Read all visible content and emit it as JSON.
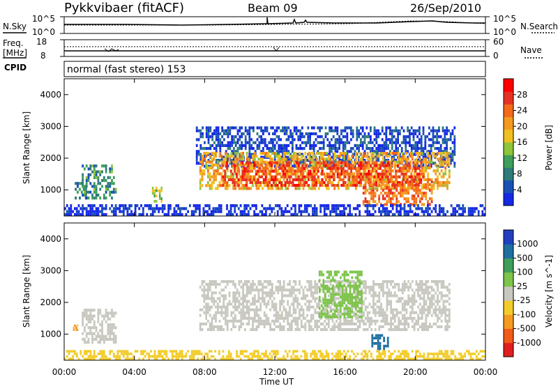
{
  "header": {
    "station": "Pykkvibaer (fitACF)",
    "beam": "Beam 09",
    "date": "26/Sep/2010"
  },
  "panel_noise": {
    "left_label": "N.Sky",
    "left_ticks": [
      "10^5",
      "10^0"
    ],
    "right_label": "N.Search",
    "right_ticks": [
      "10^5",
      "10^0"
    ]
  },
  "panel_freq": {
    "left_label_line1": "Freq.",
    "left_label_line2": "[MHz]",
    "left_ticks": [
      "18",
      "8"
    ],
    "right_label": "Nave",
    "right_ticks": [
      "60",
      "0"
    ]
  },
  "panel_cpid": {
    "label": "CPID",
    "text": "normal (fast stereo) 153"
  },
  "chart_data": [
    {
      "type": "heatmap",
      "title": "",
      "xlabel": "",
      "ylabel": "Slant Range [km]",
      "xlim": [
        0,
        24
      ],
      "ylim": [
        180,
        4500
      ],
      "yticks": [
        1000,
        2000,
        3000,
        4000
      ],
      "colorbar": {
        "label": "Power [dB]",
        "ticks": [
          "4",
          "8",
          "12",
          "16",
          "20",
          "24",
          "28"
        ],
        "colors": [
          "#1428e6",
          "#1a50b4",
          "#2f7a7a",
          "#3e9e5a",
          "#8ec43a",
          "#f0c020",
          "#f59a1e",
          "#f56a1a",
          "#e63222",
          "#ff0000"
        ]
      },
      "regions": [
        {
          "t0": 0.6,
          "t1": 1.3,
          "r0": 700,
          "r1": 1250,
          "level": 10
        },
        {
          "t0": 1.0,
          "t1": 3.0,
          "r0": 700,
          "r1": 1800,
          "level": 11
        },
        {
          "t0": 5.0,
          "t1": 5.6,
          "r0": 600,
          "r1": 1100,
          "level": 16
        },
        {
          "t0": 7.5,
          "t1": 22.3,
          "r0": 1700,
          "r1": 3000,
          "level": 6
        },
        {
          "t0": 7.7,
          "t1": 22.0,
          "r0": 1000,
          "r1": 2200,
          "level": 20
        },
        {
          "t0": 9.0,
          "t1": 20.5,
          "r0": 1100,
          "r1": 1900,
          "level": 26
        },
        {
          "t0": 17.0,
          "t1": 21.0,
          "r0": 500,
          "r1": 1300,
          "level": 24
        },
        {
          "t0": 0.0,
          "t1": 24.0,
          "r0": 180,
          "r1": 550,
          "level": 4
        }
      ]
    },
    {
      "type": "heatmap",
      "title": "",
      "xlabel": "Time UT",
      "ylabel": "Slant Range [km]",
      "xlim": [
        0,
        24
      ],
      "ylim": [
        180,
        4500
      ],
      "xticks": [
        "00:00",
        "04:00",
        "08:00",
        "12:00",
        "16:00",
        "20:00",
        "00:00"
      ],
      "yticks": [
        1000,
        2000,
        3000,
        4000
      ],
      "colorbar": {
        "label": "Velocity [m s^-1]",
        "ticks": [
          "1000",
          "500",
          "100",
          "25",
          "-25",
          "-100",
          "-500",
          "-1000"
        ],
        "colors": [
          "#2040c0",
          "#1f6fa0",
          "#3e9e5a",
          "#7dc44a",
          "#c8c8c0",
          "#f2cc2a",
          "#f59a1e",
          "#f25a18",
          "#e01e1e"
        ]
      },
      "regions": [
        {
          "t0": 1.0,
          "t1": 3.0,
          "r0": 700,
          "r1": 1800,
          "level": 0
        },
        {
          "t0": 7.7,
          "t1": 22.0,
          "r0": 1100,
          "r1": 2700,
          "level": 0
        },
        {
          "t0": 14.5,
          "t1": 17.0,
          "r0": 1500,
          "r1": 3000,
          "level": 80
        },
        {
          "t0": 17.5,
          "t1": 18.5,
          "r0": 500,
          "r1": 1000,
          "level": 800
        },
        {
          "t0": 0.5,
          "t1": 0.8,
          "r0": 1100,
          "r1": 1300,
          "level": -300
        },
        {
          "t0": 0.0,
          "t1": 24.0,
          "r0": 180,
          "r1": 500,
          "level": -60
        }
      ]
    }
  ]
}
